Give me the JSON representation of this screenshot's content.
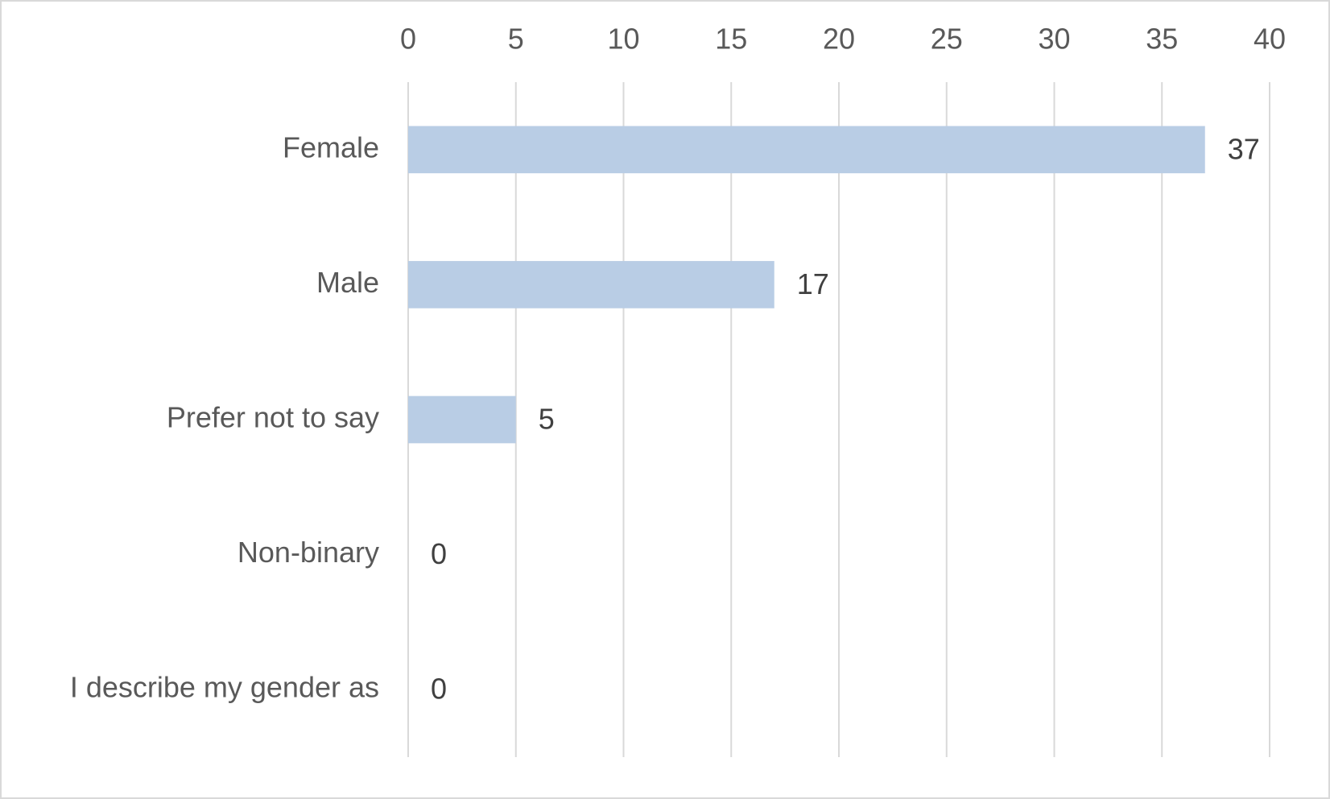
{
  "chart_data": {
    "type": "hbar",
    "categories": [
      "Female",
      "Male",
      "Prefer not to say",
      "Non-binary",
      "I describe my gender as"
    ],
    "values": [
      37,
      17,
      5,
      0,
      0
    ],
    "color": "#b9cde5",
    "xlim": [
      0,
      40
    ],
    "xticks": [
      0,
      5,
      10,
      15,
      20,
      25,
      30,
      35,
      40
    ],
    "grid": true
  }
}
